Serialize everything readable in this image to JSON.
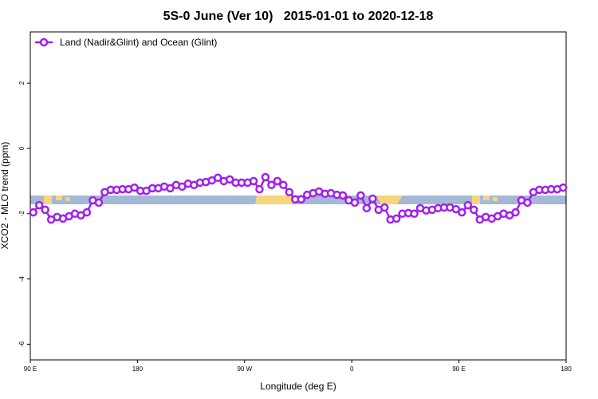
{
  "chart_data": {
    "type": "line",
    "title": "5S-0 June (Ver 10)   2015-01-01 to 2020-12-18",
    "xlabel": "Longitude (deg E)",
    "ylabel": "XCO2 - MLO trend (ppm)",
    "x": [
      92.5,
      97.5,
      102.5,
      107.5,
      112.5,
      117.5,
      122.5,
      127.5,
      132.5,
      137.5,
      142.5,
      147.5,
      152.5,
      157.5,
      162.5,
      167.5,
      172.5,
      177.5,
      182.5,
      187.5,
      192.5,
      197.5,
      202.5,
      207.5,
      212.5,
      217.5,
      222.5,
      227.5,
      232.5,
      237.5,
      242.5,
      247.5,
      252.5,
      257.5,
      262.5,
      267.5,
      272.5,
      277.5,
      282.5,
      287.5,
      292.5,
      297.5,
      302.5,
      307.5,
      312.5,
      317.5,
      322.5,
      327.5,
      332.5,
      337.5,
      342.5,
      347.5,
      352.5,
      357.5,
      362.5,
      367.5,
      372.5,
      377.5,
      382.5,
      387.5,
      392.5,
      397.5,
      402.5,
      407.5,
      412.5,
      417.5,
      422.5,
      427.5,
      432.5,
      437.5,
      442.5,
      447.5,
      452.5,
      457.5,
      462.5,
      467.5,
      472.5,
      477.5,
      482.5,
      487.5,
      492.5,
      497.5,
      502.5,
      507.5,
      512.5,
      517.5,
      522.5,
      527.5,
      532.5,
      537.5
    ],
    "series": [
      {
        "name": "Land (Nadir&Glint) and Ocean (Glint)",
        "color": "#a020f0",
        "values": [
          -1.96,
          -1.74,
          -1.88,
          -2.18,
          -2.1,
          -2.15,
          -2.08,
          -2.0,
          -2.05,
          -1.96,
          -1.59,
          -1.66,
          -1.34,
          -1.27,
          -1.27,
          -1.25,
          -1.25,
          -1.2,
          -1.3,
          -1.3,
          -1.22,
          -1.22,
          -1.17,
          -1.22,
          -1.12,
          -1.17,
          -1.08,
          -1.12,
          -1.05,
          -1.03,
          -0.98,
          -0.9,
          -1.0,
          -0.95,
          -1.05,
          -1.05,
          -1.05,
          -1.0,
          -1.25,
          -0.88,
          -1.12,
          -1.0,
          -1.12,
          -1.34,
          -1.56,
          -1.56,
          -1.42,
          -1.37,
          -1.32,
          -1.39,
          -1.37,
          -1.42,
          -1.44,
          -1.59,
          -1.66,
          -1.44,
          -1.83,
          -1.54,
          -1.88,
          -1.81,
          -2.18,
          -2.15,
          -2.0,
          -1.98,
          -2.0,
          -1.83,
          -1.9,
          -1.88,
          -1.83,
          -1.81,
          -1.81,
          -1.86,
          -1.96,
          -1.74,
          -1.88,
          -2.18,
          -2.1,
          -2.15,
          -2.08,
          -2.0,
          -2.05,
          -1.96,
          -1.59,
          -1.66,
          -1.34,
          -1.27,
          -1.27,
          -1.25,
          -1.25,
          -1.2
        ]
      }
    ],
    "xlim": [
      90,
      540
    ],
    "xticks": [
      {
        "value": 90,
        "label": "90 E"
      },
      {
        "value": 180,
        "label": "180"
      },
      {
        "value": 270,
        "label": "90 W"
      },
      {
        "value": 360,
        "label": "0"
      },
      {
        "value": 450,
        "label": "90 E"
      },
      {
        "value": 540,
        "label": "180"
      }
    ],
    "ylim": [
      -6.48,
      3.57
    ],
    "yticks": [
      -6,
      -4,
      -2,
      0,
      2
    ],
    "legend": "top-left"
  }
}
